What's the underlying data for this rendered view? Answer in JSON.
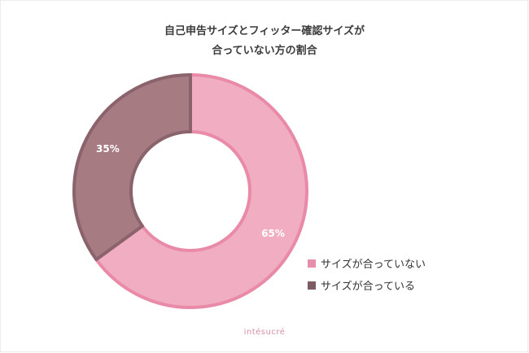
{
  "chart_data": {
    "type": "pie",
    "donut": true,
    "title_lines": [
      "自己申告サイズとフィッター確認サイズが",
      "合っていない方の割合"
    ],
    "categories": [
      "サイズが合っていない",
      "サイズが合っている"
    ],
    "values": [
      65,
      35
    ],
    "value_labels": [
      "65%",
      "35%"
    ],
    "colors": [
      "#f1adc2",
      "#a77b82"
    ],
    "stroke_colors": [
      "#e98aa9",
      "#8a636c"
    ],
    "legend_position": "bottom-right"
  },
  "brand": "intésucré"
}
